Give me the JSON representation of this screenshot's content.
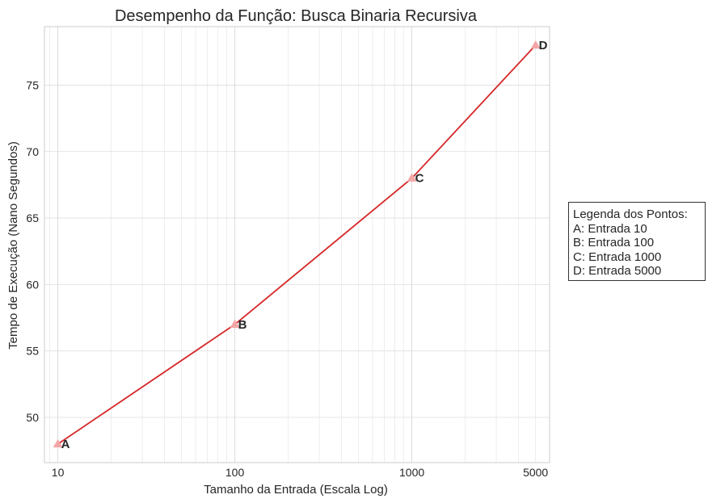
{
  "chart_data": {
    "type": "line",
    "title": "Desempenho da Função: Busca Binaria Recursiva",
    "xlabel": "Tamanho da Entrada (Escala Log)",
    "ylabel": "Tempo de Execução (Nano Segundos)",
    "xscale": "log",
    "xlim": [
      8.4,
      6000
    ],
    "ylim": [
      46.6,
      79.4
    ],
    "xticks": [
      10,
      100,
      1000,
      5000
    ],
    "xtick_labels": [
      "10",
      "100",
      "1000",
      "5000"
    ],
    "yticks": [
      50,
      55,
      60,
      65,
      70,
      75
    ],
    "ytick_labels": [
      "50",
      "55",
      "60",
      "65",
      "70",
      "75"
    ],
    "grid": true,
    "series": [
      {
        "x": [
          10,
          100,
          1000,
          5000
        ],
        "y": [
          48,
          57,
          68,
          78
        ],
        "point_labels": [
          "A",
          "B",
          "C",
          "D"
        ],
        "line_color": "#d62728",
        "marker": "triangle",
        "marker_color": "#f4a6a6"
      }
    ],
    "legend": {
      "placement": "right",
      "lines": [
        "Legenda dos Pontos:",
        "A: Entrada 10",
        "B: Entrada 100",
        "C: Entrada 1000",
        "D: Entrada 5000"
      ]
    }
  }
}
